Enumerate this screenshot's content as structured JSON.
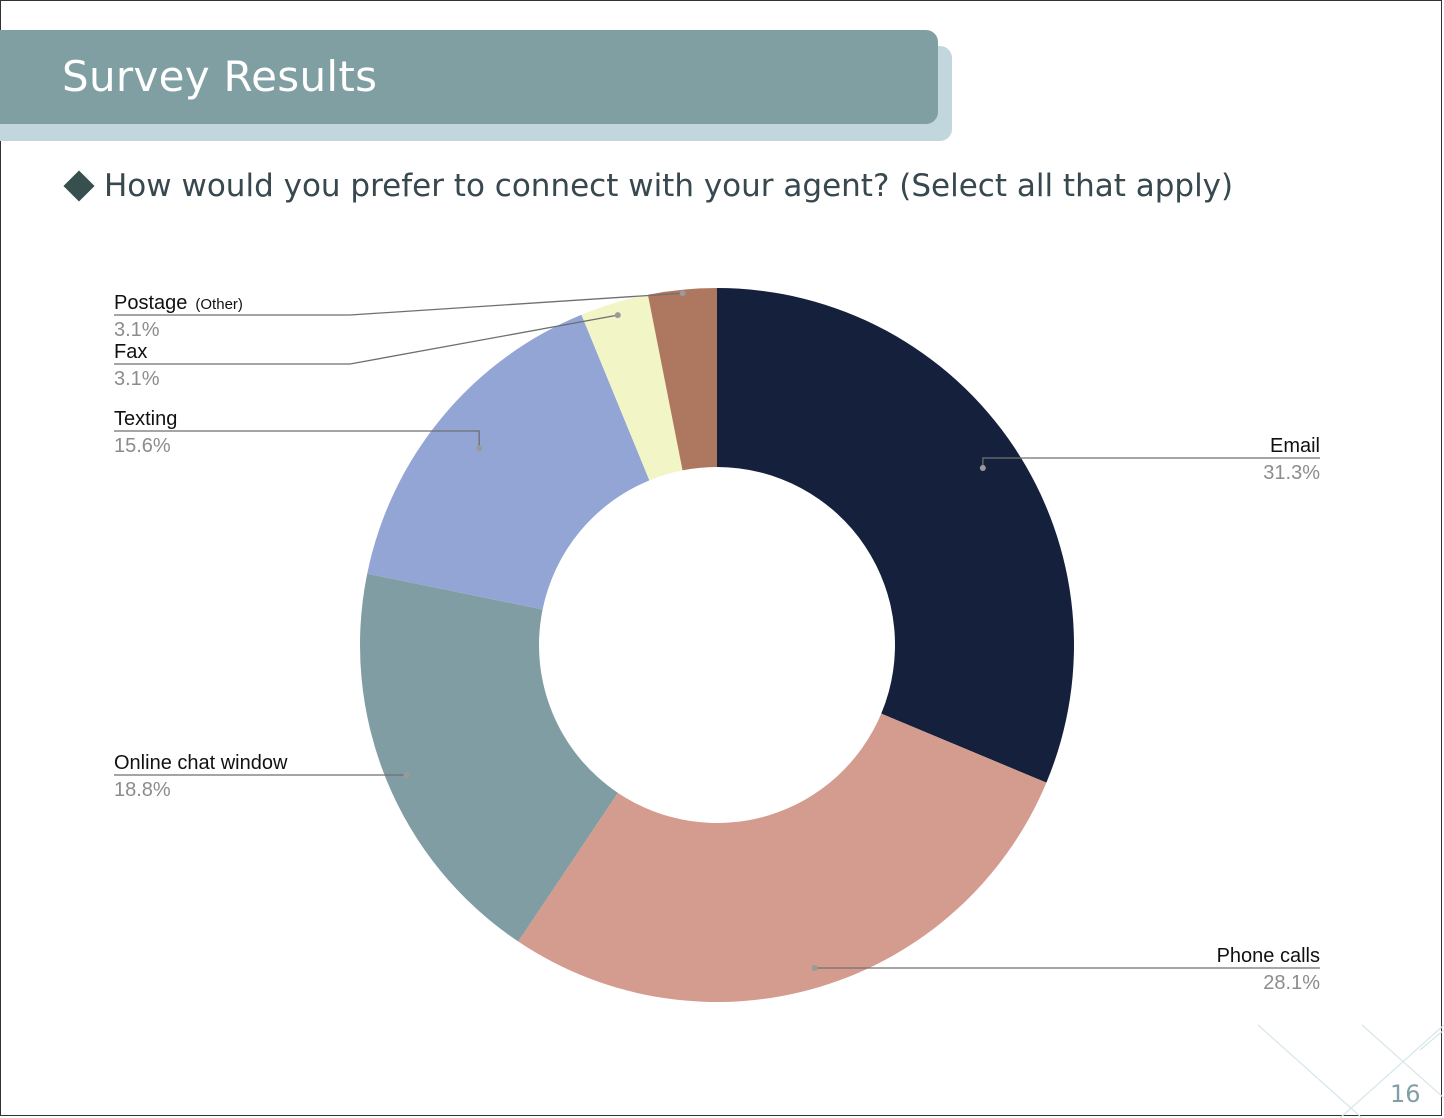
{
  "slide": {
    "title": "Survey Results",
    "question": "How would you prefer to connect with your agent? (Select all that apply)",
    "page_number": "16"
  },
  "chart_data": {
    "type": "pie",
    "donut": true,
    "title": "",
    "categories": [
      "Email",
      "Phone calls",
      "Online chat window",
      "Texting",
      "Fax",
      "Postage"
    ],
    "values": [
      31.3,
      28.1,
      18.8,
      15.6,
      3.1,
      3.1
    ],
    "value_labels": [
      "31.3%",
      "28.1%",
      "18.8%",
      "15.6%",
      "3.1%",
      "3.1%"
    ],
    "category_notes": [
      "",
      "",
      "",
      "",
      "",
      "(Other)"
    ],
    "colors": [
      "#15213c",
      "#d49b8f",
      "#809da3",
      "#93a5d4",
      "#f2f5c5",
      "#ae7860"
    ],
    "legend": "none"
  }
}
